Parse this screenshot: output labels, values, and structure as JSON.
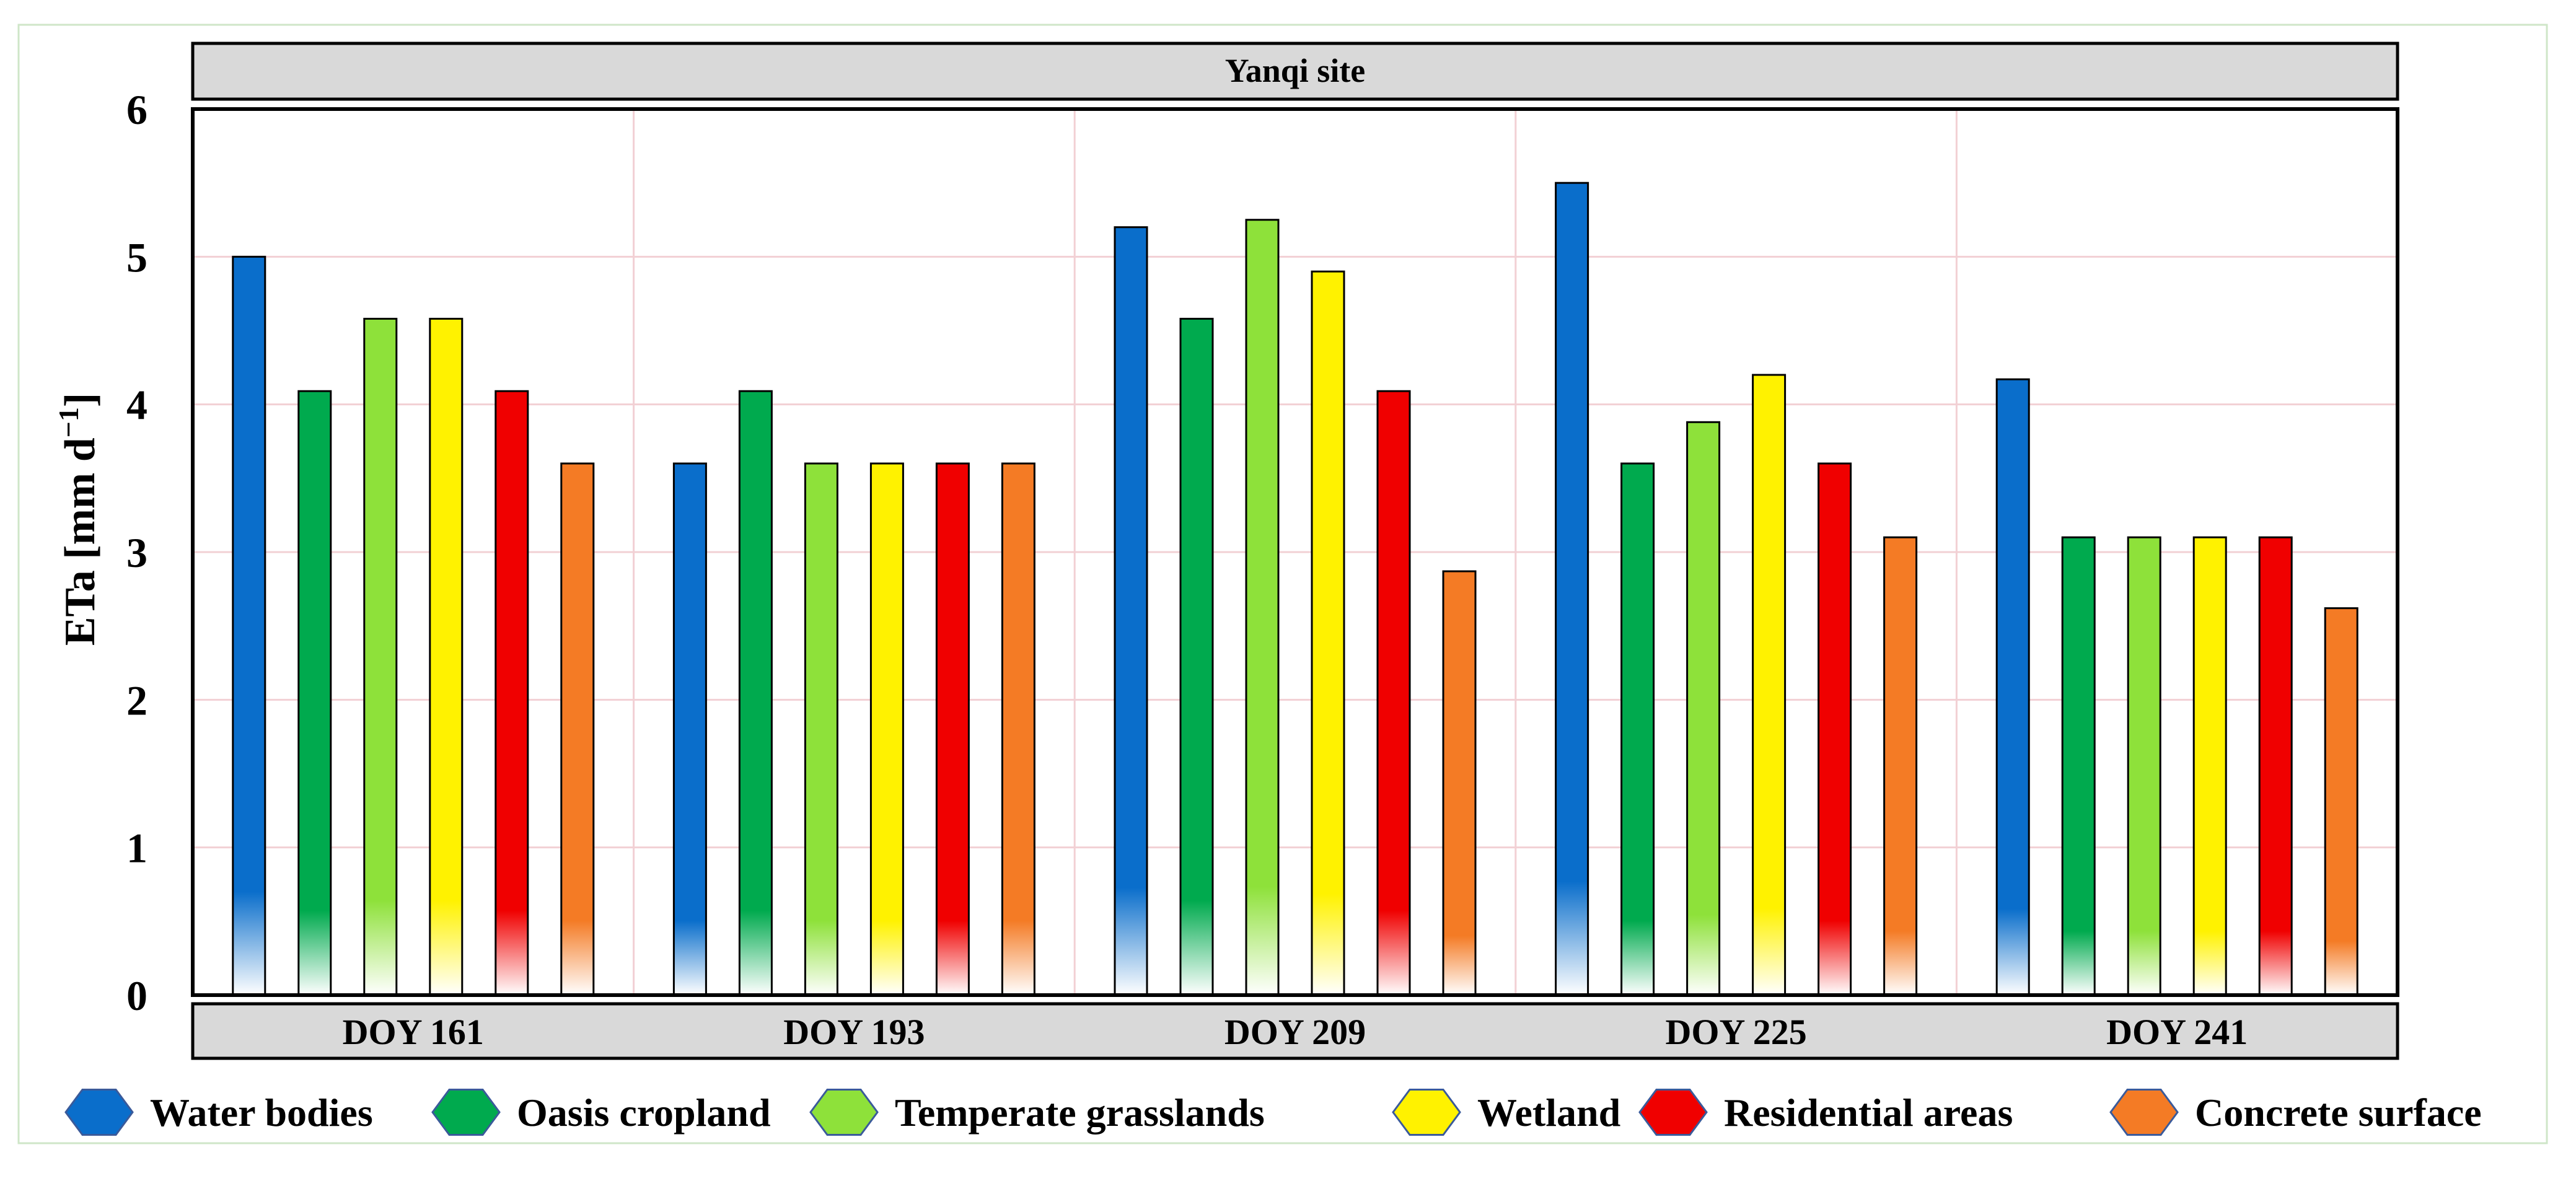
{
  "chart_data": {
    "type": "bar",
    "title": "Yanqi site",
    "ylabel_text": "ETa [mm d",
    "ylabel_sup": "−1",
    "ylabel_close": "]",
    "ylim": [
      0,
      6
    ],
    "yticks": [
      0,
      1,
      2,
      3,
      4,
      5,
      6
    ],
    "grid": true,
    "legend_position": "bottom",
    "categories": [
      "DOY 161",
      "DOY 193",
      "DOY 209",
      "DOY 225",
      "DOY 241"
    ],
    "series": [
      {
        "name": "Water bodies",
        "color": "#0A6ECB",
        "values": [
          5.0,
          3.6,
          5.2,
          5.5,
          4.17
        ]
      },
      {
        "name": "Oasis cropland",
        "color": "#00AA4E",
        "values": [
          4.09,
          4.09,
          4.58,
          3.6,
          3.1
        ]
      },
      {
        "name": "Temperate grasslands",
        "color": "#8EE13A",
        "values": [
          4.58,
          3.6,
          5.25,
          3.88,
          3.1
        ]
      },
      {
        "name": "Wetland",
        "color": "#FFF200",
        "values": [
          4.58,
          3.6,
          4.9,
          4.2,
          3.1
        ]
      },
      {
        "name": "Residential areas",
        "color": "#F00000",
        "values": [
          4.09,
          3.6,
          4.09,
          3.6,
          3.1
        ]
      },
      {
        "name": "Concrete surface",
        "color": "#F47B25",
        "values": [
          3.6,
          3.6,
          2.87,
          3.1,
          2.62
        ]
      }
    ]
  }
}
